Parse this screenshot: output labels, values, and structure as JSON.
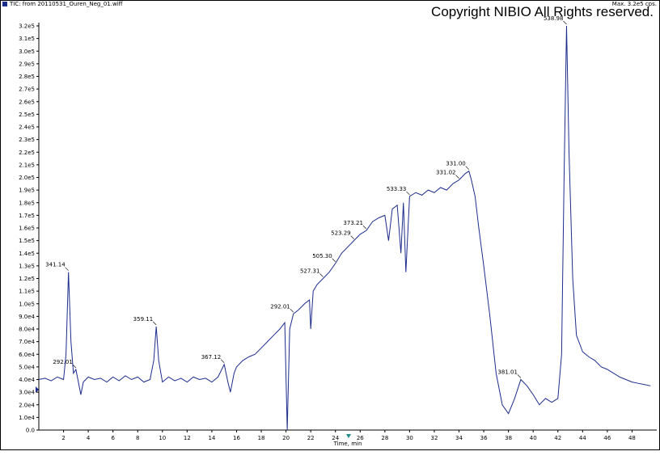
{
  "chart_data": {
    "type": "line",
    "title": "TIC: from 20110531_Ouren_Neg_01.wiff",
    "subtitle": "Max. 3.2e5 cps.",
    "copyright": "Copyright NIBIO All Rights reserved.",
    "x_label": "Time, min",
    "color": "#1c2c8c",
    "xlim": [
      0,
      50
    ],
    "ylim": [
      0,
      320000
    ],
    "xticks": [
      2,
      4,
      6,
      8,
      10,
      12,
      14,
      16,
      18,
      20,
      22,
      24,
      26,
      28,
      30,
      32,
      34,
      36,
      38,
      40,
      42,
      44,
      46,
      48
    ],
    "yticks": [
      {
        "value": 0,
        "label": "0.0"
      },
      {
        "value": 10000,
        "label": "1.0e4"
      },
      {
        "value": 20000,
        "label": "2.0e4"
      },
      {
        "value": 30000,
        "label": "3.0e4"
      },
      {
        "value": 40000,
        "label": "4.0e4"
      },
      {
        "value": 50000,
        "label": "5.0e4"
      },
      {
        "value": 60000,
        "label": "6.0e4"
      },
      {
        "value": 70000,
        "label": "7.0e4"
      },
      {
        "value": 80000,
        "label": "8.0e4"
      },
      {
        "value": 90000,
        "label": "9.0e4"
      },
      {
        "value": 100000,
        "label": "1.0e5"
      },
      {
        "value": 110000,
        "label": "1.1e5"
      },
      {
        "value": 120000,
        "label": "1.2e5"
      },
      {
        "value": 130000,
        "label": "1.3e5"
      },
      {
        "value": 140000,
        "label": "1.4e5"
      },
      {
        "value": 150000,
        "label": "1.5e5"
      },
      {
        "value": 160000,
        "label": "1.6e5"
      },
      {
        "value": 170000,
        "label": "1.7e5"
      },
      {
        "value": 180000,
        "label": "1.8e5"
      },
      {
        "value": 190000,
        "label": "1.9e5"
      },
      {
        "value": 200000,
        "label": "2.0e5"
      },
      {
        "value": 210000,
        "label": "2.1e5"
      },
      {
        "value": 220000,
        "label": "2.2e5"
      },
      {
        "value": 230000,
        "label": "2.3e5"
      },
      {
        "value": 240000,
        "label": "2.4e5"
      },
      {
        "value": 250000,
        "label": "2.5e5"
      },
      {
        "value": 260000,
        "label": "2.6e5"
      },
      {
        "value": 270000,
        "label": "2.7e5"
      },
      {
        "value": 280000,
        "label": "2.8e5"
      },
      {
        "value": 290000,
        "label": "2.9e5"
      },
      {
        "value": 300000,
        "label": "3.0e5"
      },
      {
        "value": 310000,
        "label": "3.1e5"
      },
      {
        "value": 320000,
        "label": "3.2e5"
      }
    ],
    "x": [
      0,
      0.5,
      1,
      1.5,
      2,
      2.2,
      2.4,
      2.6,
      2.8,
      3,
      3.2,
      3.4,
      3.6,
      4,
      4.5,
      5,
      5.5,
      6,
      6.5,
      7,
      7.5,
      8,
      8.5,
      9,
      9.3,
      9.5,
      9.7,
      10,
      10.5,
      11,
      11.5,
      12,
      12.5,
      13,
      13.5,
      14,
      14.5,
      15,
      15.3,
      15.5,
      15.8,
      16,
      16.5,
      17,
      17.5,
      18,
      18.5,
      19,
      19.5,
      19.9,
      20.1,
      20.3,
      20.6,
      21,
      21.5,
      21.9,
      22,
      22.2,
      22.5,
      23,
      23.5,
      24,
      24.5,
      25,
      25.5,
      26,
      26.5,
      27,
      27.5,
      28,
      28.3,
      28.6,
      29,
      29.3,
      29.5,
      29.7,
      30,
      30.5,
      31,
      31.5,
      32,
      32.5,
      33,
      33.5,
      34,
      34.5,
      34.8,
      35,
      35.3,
      35.6,
      36,
      36.5,
      37,
      37.5,
      38,
      38.5,
      39,
      39.5,
      40,
      40.5,
      41,
      41.5,
      42,
      42.3,
      42.5,
      42.7,
      42.9,
      43.2,
      43.5,
      44,
      44.5,
      45,
      45.5,
      46,
      46.5,
      47,
      47.5,
      48,
      48.5,
      49,
      49.5
    ],
    "values": [
      40000,
      41000,
      39000,
      42000,
      40000,
      60000,
      125000,
      70000,
      45000,
      48000,
      38000,
      28000,
      38000,
      42000,
      40000,
      41000,
      38000,
      42000,
      39000,
      43000,
      40000,
      42000,
      38000,
      40000,
      55000,
      82000,
      55000,
      38000,
      42000,
      39000,
      41000,
      38000,
      42000,
      40000,
      41000,
      38000,
      42000,
      52000,
      38000,
      30000,
      45000,
      50000,
      55000,
      58000,
      60000,
      65000,
      70000,
      75000,
      80000,
      85000,
      0,
      80000,
      92000,
      95000,
      100000,
      103000,
      80000,
      110000,
      115000,
      120000,
      125000,
      132000,
      140000,
      145000,
      150000,
      155000,
      158000,
      165000,
      168000,
      170000,
      150000,
      175000,
      178000,
      140000,
      180000,
      125000,
      185000,
      188000,
      186000,
      190000,
      188000,
      192000,
      190000,
      195000,
      198000,
      203000,
      205000,
      198000,
      185000,
      160000,
      130000,
      90000,
      45000,
      20000,
      13000,
      25000,
      40000,
      35000,
      28000,
      20000,
      25000,
      22000,
      25000,
      60000,
      200000,
      320000,
      220000,
      120000,
      75000,
      62000,
      58000,
      55000,
      50000,
      48000,
      45000,
      42000,
      40000,
      38000,
      37000,
      36000,
      35000
    ],
    "annotations": [
      {
        "label": "341.14",
        "x": 2.4,
        "value": 125000
      },
      {
        "label": "292.01",
        "x": 3,
        "value": 48000
      },
      {
        "label": "359.11",
        "x": 9.5,
        "value": 82000
      },
      {
        "label": "367.12",
        "x": 15,
        "value": 52000
      },
      {
        "label": "292.01",
        "x": 20.6,
        "value": 92000
      },
      {
        "label": "527.31",
        "x": 23,
        "value": 120000
      },
      {
        "label": "505.30",
        "x": 24,
        "value": 132000
      },
      {
        "label": "523.29",
        "x": 25.5,
        "value": 150000
      },
      {
        "label": "373.21",
        "x": 26.5,
        "value": 158000
      },
      {
        "label": "533.33",
        "x": 30,
        "value": 185000
      },
      {
        "label": "331.02",
        "x": 34,
        "value": 198000
      },
      {
        "label": "331.00",
        "x": 34.8,
        "value": 205000
      },
      {
        "label": "538.98",
        "x": 42.7,
        "value": 320000
      },
      {
        "label": "381.01",
        "x": 39,
        "value": 40000
      }
    ]
  }
}
